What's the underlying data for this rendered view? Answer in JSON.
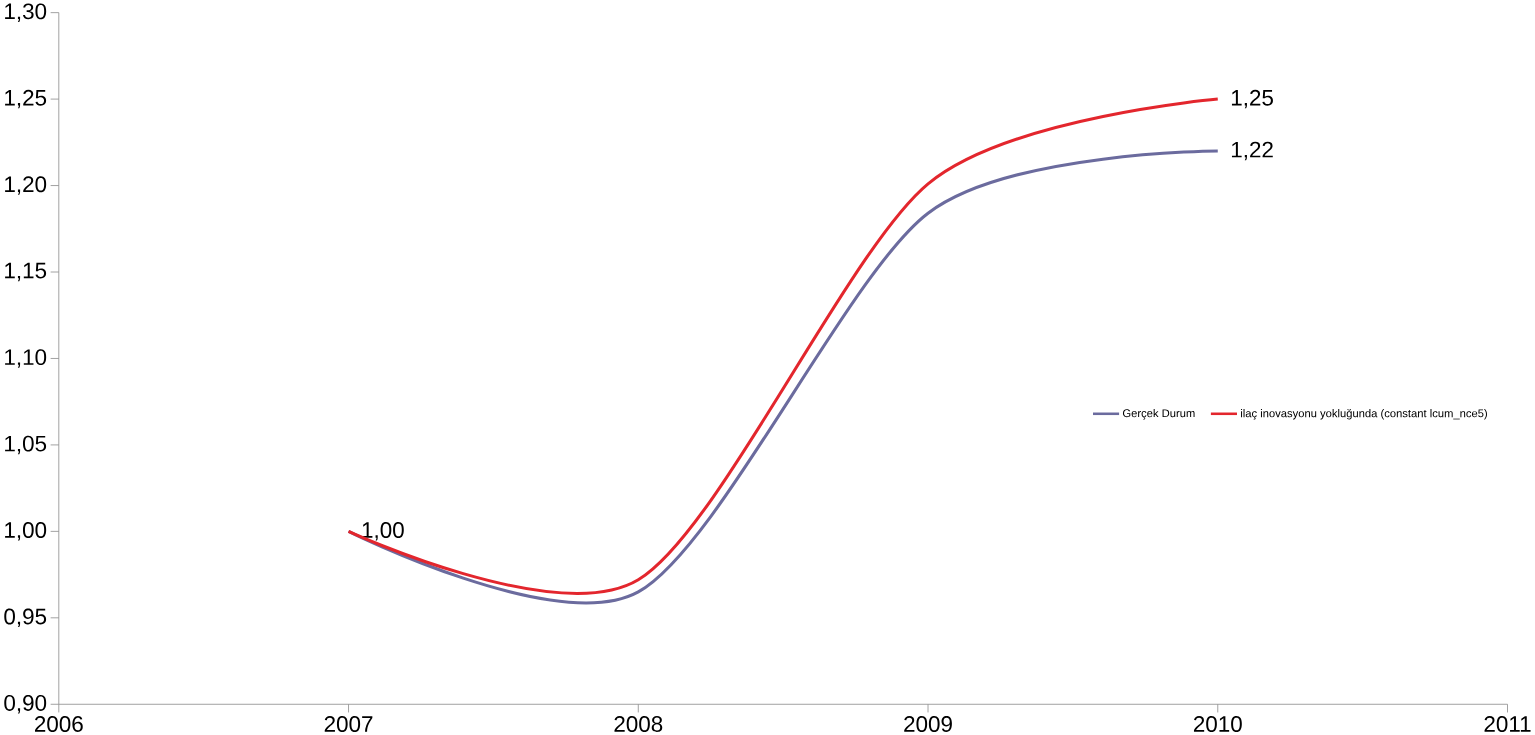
{
  "chart_data": {
    "type": "line",
    "x": [
      2007,
      2008,
      2009,
      2010
    ],
    "series": [
      {
        "name": "Gerçek Durum",
        "color": "#6b6b9e",
        "values": [
          1.0,
          0.965,
          1.184,
          1.22
        ],
        "value_labels": [
          "1,00",
          null,
          null,
          "1,22"
        ]
      },
      {
        "name": "ilaç inovasyonu yokluğunda (constant lcum_nce5)",
        "color": "#e3262d",
        "values": [
          1.0,
          0.972,
          1.201,
          1.25
        ],
        "value_labels": [
          null,
          null,
          null,
          "1,25"
        ]
      }
    ],
    "xlim": [
      2006,
      2011
    ],
    "xticks": [
      2006,
      2007,
      2008,
      2009,
      2010,
      2011
    ],
    "ylim": [
      0.9,
      1.3
    ],
    "yticks": [
      {
        "value": 0.9,
        "label": "0,90"
      },
      {
        "value": 0.95,
        "label": "0,95"
      },
      {
        "value": 1.0,
        "label": "1,00"
      },
      {
        "value": 1.05,
        "label": "1,05"
      },
      {
        "value": 1.1,
        "label": "1,10"
      },
      {
        "value": 1.15,
        "label": "1,15"
      },
      {
        "value": 1.2,
        "label": "1,20"
      },
      {
        "value": 1.25,
        "label": "1,25"
      },
      {
        "value": 1.3,
        "label": "1,30"
      }
    ],
    "grid": false,
    "legend": "right",
    "marker": "none",
    "line_style": "solid"
  }
}
